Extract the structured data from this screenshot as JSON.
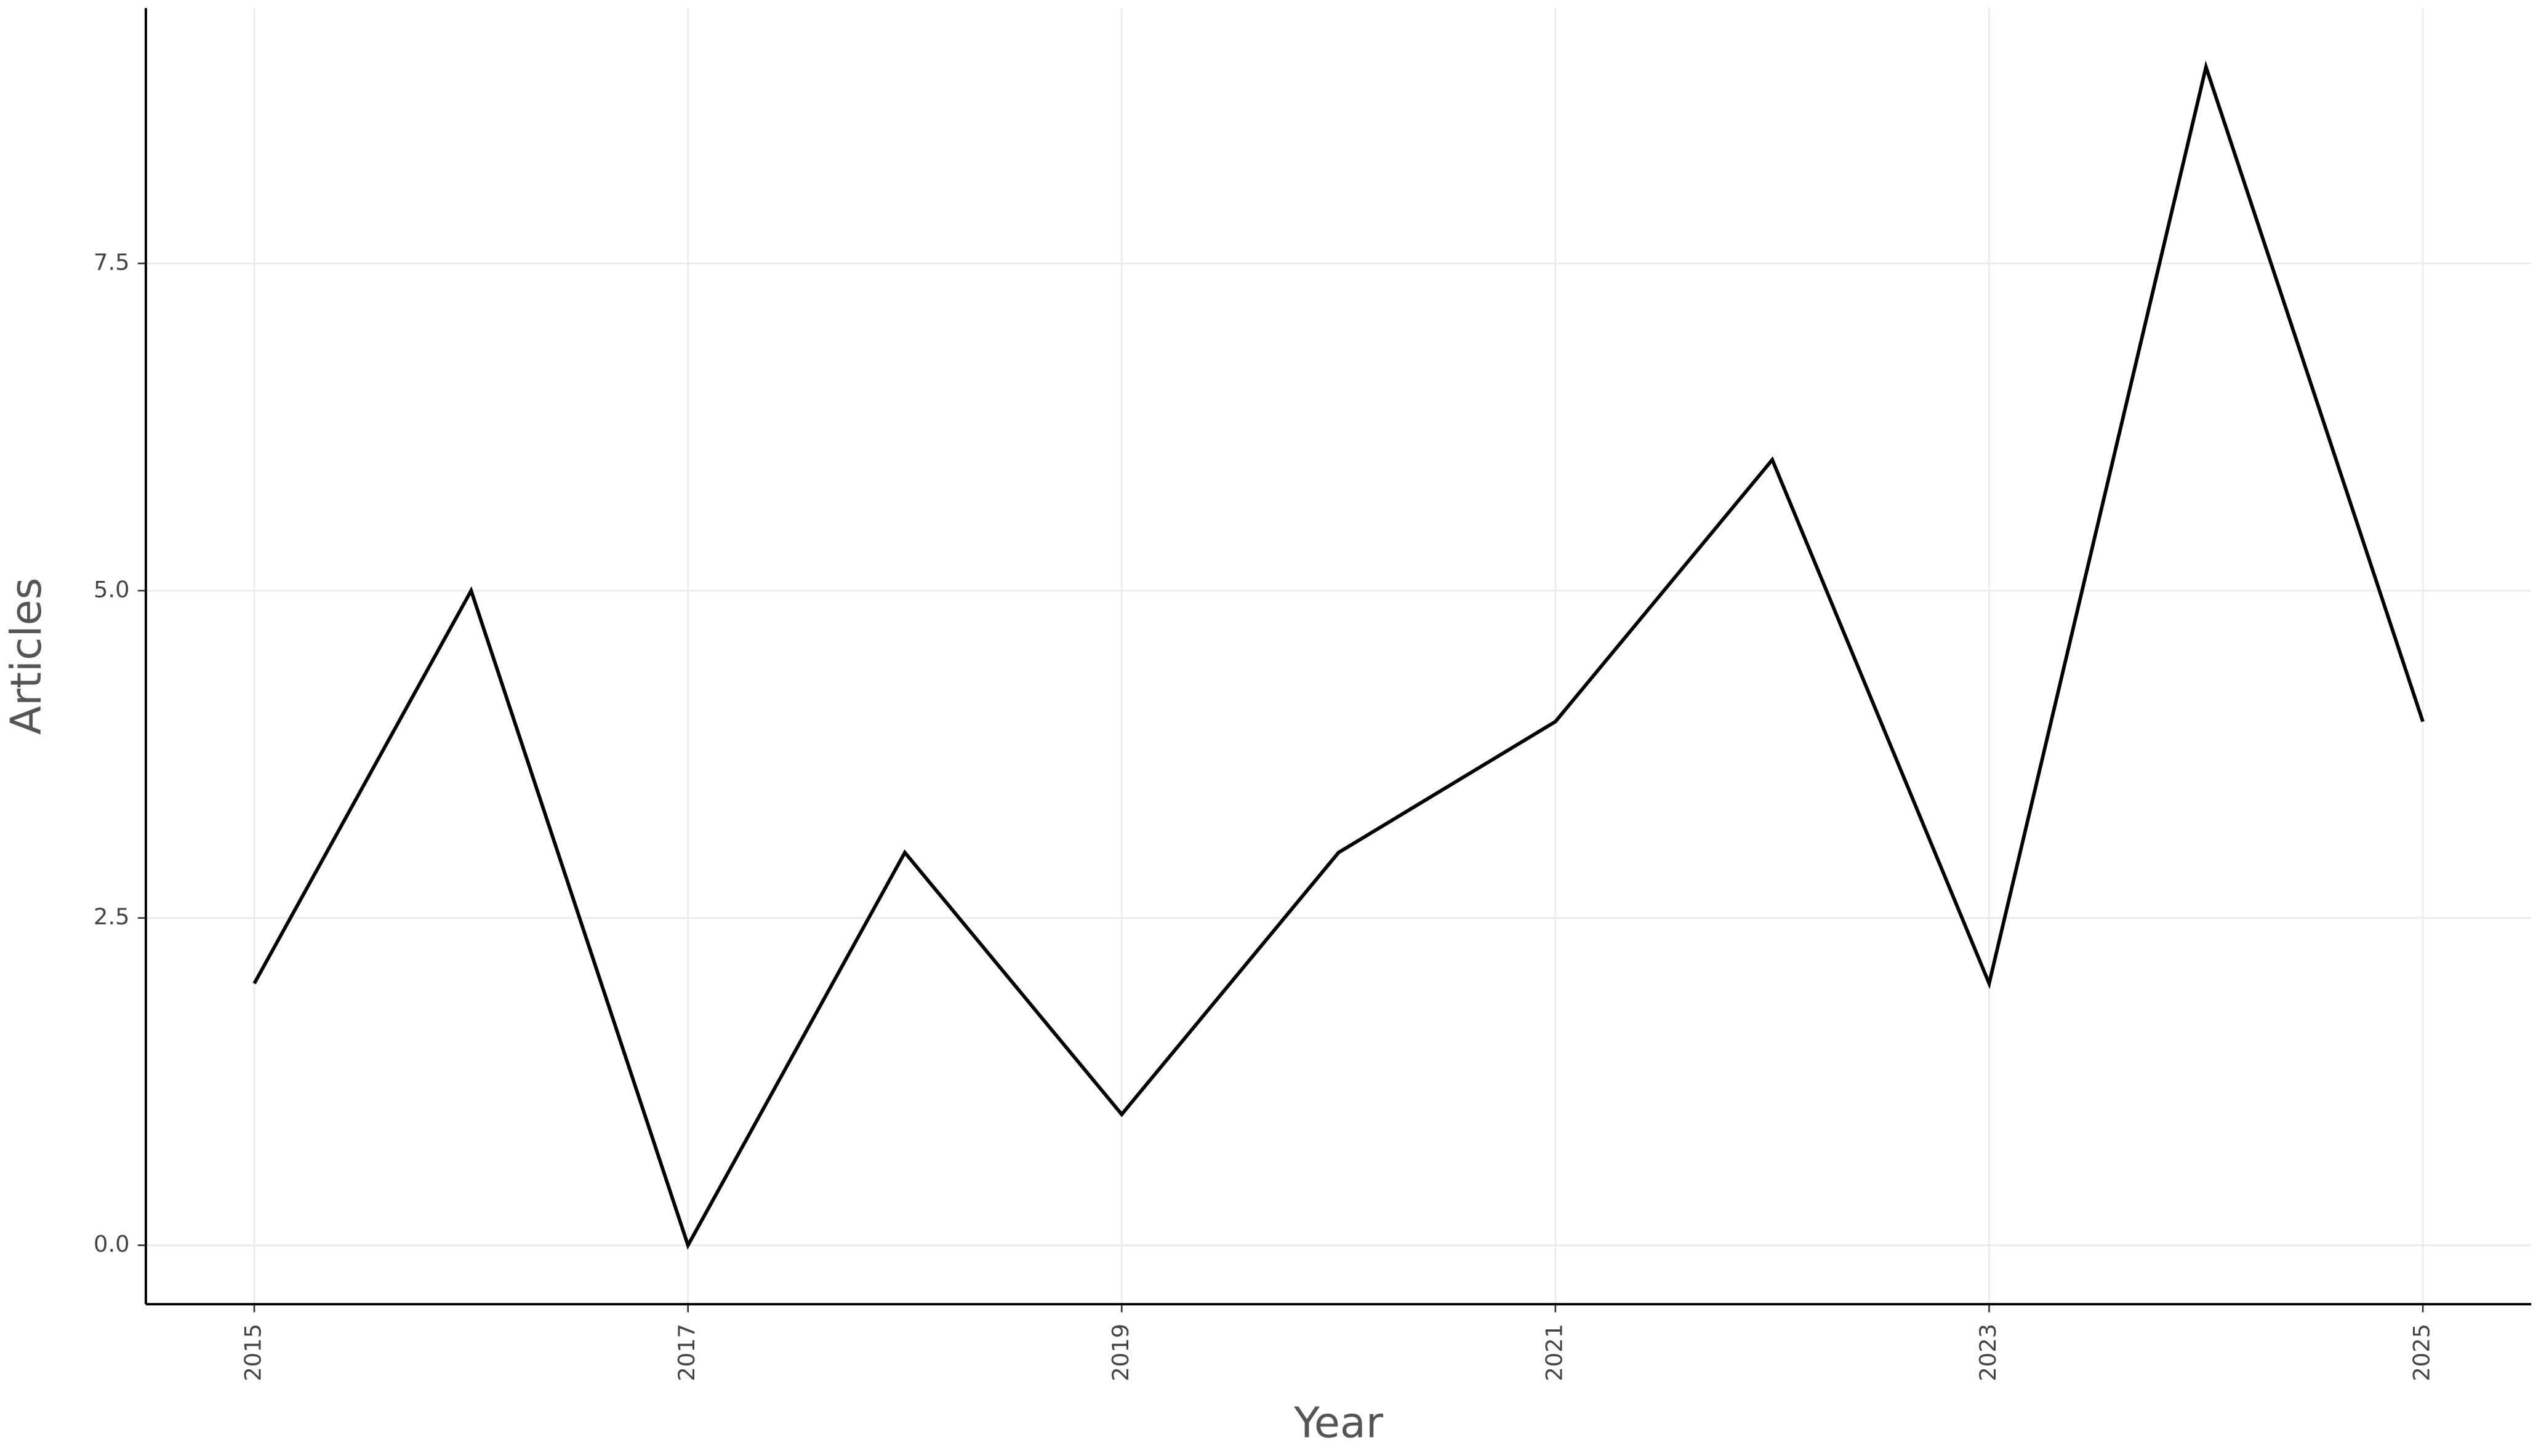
{
  "chart_data": {
    "type": "line",
    "x_label": "Year",
    "y_label": "Articles",
    "x": [
      2015,
      2016,
      2017,
      2018,
      2019,
      2020,
      2021,
      2022,
      2023,
      2024,
      2025
    ],
    "series": [
      {
        "color": "#000000",
        "values": [
          2,
          5,
          0,
          3,
          1,
          3,
          4,
          6,
          2,
          9,
          4
        ]
      }
    ],
    "xlim": [
      2014.5,
      2025.5
    ],
    "xticks": [
      2015,
      2017,
      2019,
      2021,
      2023,
      2025
    ],
    "ylim": [
      -0.45,
      9.45
    ],
    "yticks": [
      {
        "value": 0,
        "label": "0.0"
      },
      2.5,
      {
        "value": 5,
        "label": "5.0"
      },
      7.5
    ],
    "grid": true
  }
}
